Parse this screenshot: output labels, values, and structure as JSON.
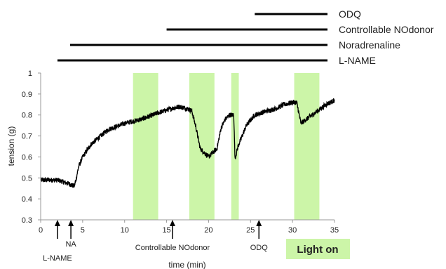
{
  "chart_data": {
    "type": "line",
    "xlabel": "time (min)",
    "ylabel": "tension (g)",
    "xlim": [
      0,
      35
    ],
    "ylim": [
      0.3,
      1.0
    ],
    "xticks": [
      0,
      5,
      10,
      15,
      20,
      25,
      30,
      35
    ],
    "yticks": [
      0.3,
      0.4,
      0.5,
      0.6,
      0.7,
      0.8,
      0.9,
      1.0
    ],
    "xtick_labels": [
      "0",
      "5",
      "10",
      "15",
      "20",
      "25",
      "30",
      "35"
    ],
    "ytick_labels": [
      "0.3",
      "0.4",
      "0.5",
      "0.6",
      "0.7",
      "0.8",
      "0.9",
      "1"
    ],
    "grid": false,
    "series": [
      {
        "color": "#000000",
        "noise": 0.012,
        "x": [
          0,
          2,
          3.5,
          4,
          4.2,
          4.5,
          5,
          6,
          8,
          10,
          12,
          14,
          15.5,
          16.5,
          17.5,
          18,
          18.5,
          19,
          20,
          21,
          21.5,
          22,
          22.5,
          23,
          23.15,
          23.5,
          24.5,
          25.5,
          27,
          28,
          29,
          30,
          30.5,
          31,
          32,
          33,
          34,
          35
        ],
        "y": [
          0.49,
          0.49,
          0.47,
          0.46,
          0.49,
          0.55,
          0.6,
          0.66,
          0.73,
          0.76,
          0.78,
          0.81,
          0.83,
          0.84,
          0.83,
          0.82,
          0.74,
          0.64,
          0.6,
          0.64,
          0.74,
          0.78,
          0.8,
          0.8,
          0.59,
          0.65,
          0.75,
          0.8,
          0.82,
          0.83,
          0.85,
          0.86,
          0.86,
          0.76,
          0.79,
          0.82,
          0.85,
          0.87
        ]
      }
    ],
    "light_on_intervals": [
      [
        11,
        14
      ],
      [
        17.7,
        20.7
      ],
      [
        22.7,
        23.6
      ],
      [
        30.2,
        33.2
      ]
    ],
    "treatments": [
      {
        "label": "L-NAME",
        "start": 2,
        "end": 35
      },
      {
        "label": "Noradrenaline",
        "start": 3.5,
        "end": 35
      },
      {
        "label": "Controllable  NOdonor",
        "start": 15,
        "end": 35
      },
      {
        "label": "ODQ",
        "start": 25.5,
        "end": 35
      }
    ],
    "event_markers": [
      {
        "label": "L-NAME",
        "x": 2
      },
      {
        "label": "NA",
        "x": 3.6
      },
      {
        "label": "Controllable NOdonor",
        "x": 15.7
      },
      {
        "label": "ODQ",
        "x": 26
      }
    ],
    "legend": {
      "label": "Light on",
      "color": "#ccf5a8"
    }
  }
}
